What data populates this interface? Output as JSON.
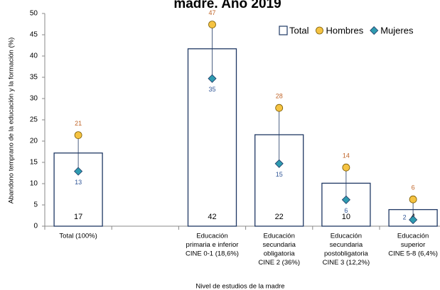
{
  "chart_data": {
    "type": "bar",
    "title": "madre. Año 2019",
    "y_label": "Abandono temprano de la educación y la formación    (%)",
    "x_label": "Nivel de estudios de la madre",
    "categories": [
      [
        "Total (100%)"
      ],
      null,
      [
        "Educación",
        "primaria e inferior",
        "CINE 0-1 (18,6%)"
      ],
      [
        "Educación",
        "secundaria",
        "obligatoria",
        "CINE 2 (36%)"
      ],
      [
        "Educación",
        "secundaria",
        "postobligatoria",
        "CINE 3 (12,2%)"
      ],
      [
        "Educación",
        "superior",
        "CINE 5-8 (6,4%)"
      ]
    ],
    "series": [
      {
        "name": "Total",
        "color": "#1f3864",
        "values": [
          17.2,
          null,
          41.7,
          21.5,
          10.1,
          3.9
        ],
        "value_labels": [
          "17",
          null,
          "42",
          "22",
          "10",
          "4"
        ]
      },
      {
        "name": "Hombres",
        "color": "#f5c342",
        "values": [
          21.4,
          null,
          47.4,
          27.8,
          13.8,
          6.3
        ],
        "value_labels": [
          "21",
          null,
          "47",
          "28",
          "14",
          "6"
        ]
      },
      {
        "name": "Mujeres",
        "color": "#2e9bb0",
        "values": [
          12.9,
          null,
          34.7,
          14.7,
          6.2,
          1.5
        ],
        "value_labels": [
          "13",
          null,
          "35",
          "15",
          "6",
          "2"
        ]
      }
    ],
    "ylim": [
      0,
      50
    ],
    "yticks": [
      0,
      5,
      10,
      15,
      20,
      25,
      30,
      35,
      40,
      45,
      50
    ],
    "legend": "top-right"
  }
}
